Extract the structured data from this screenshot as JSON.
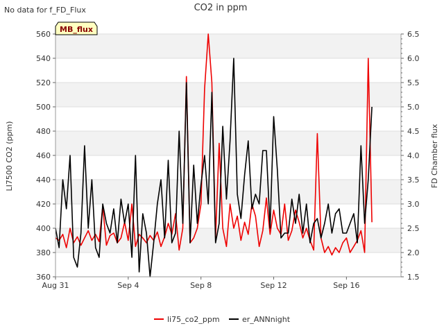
{
  "status_note": "No data for f_FD_Flux",
  "chart_data": {
    "type": "line",
    "title": "CO2 in ppm",
    "ylabel_left": "LI7500 CO2 (ppm)",
    "ylabel_right": "FD Chamber flux",
    "badge": "MB_flux",
    "x_range_days": [
      0,
      19
    ],
    "x_ticks": [
      {
        "day": 0,
        "label": "Aug 31"
      },
      {
        "day": 4,
        "label": "Sep 4"
      },
      {
        "day": 8,
        "label": "Sep 8"
      },
      {
        "day": 12,
        "label": "Sep 12"
      },
      {
        "day": 16,
        "label": "Sep 16"
      }
    ],
    "ylim_left": [
      360,
      560
    ],
    "y_ticks_left": [
      360,
      380,
      400,
      420,
      440,
      460,
      480,
      500,
      520,
      540,
      560
    ],
    "ylim_right": [
      1.5,
      6.5
    ],
    "y_ticks_right": [
      1.5,
      2.0,
      2.5,
      3.0,
      3.5,
      4.0,
      4.5,
      5.0,
      5.5,
      6.0,
      6.5
    ],
    "grid": true,
    "legend_position": "bottom-center",
    "series": [
      {
        "name": "li75_co2_ppm",
        "color": "#ee0000",
        "axis": "left",
        "x": [
          0.0,
          0.2,
          0.4,
          0.6,
          0.8,
          1.0,
          1.2,
          1.4,
          1.6,
          1.8,
          2.0,
          2.2,
          2.4,
          2.6,
          2.8,
          3.0,
          3.2,
          3.4,
          3.6,
          3.8,
          4.0,
          4.2,
          4.4,
          4.6,
          4.8,
          5.0,
          5.2,
          5.4,
          5.6,
          5.8,
          6.0,
          6.2,
          6.4,
          6.6,
          6.8,
          7.0,
          7.2,
          7.4,
          7.6,
          7.8,
          8.0,
          8.2,
          8.4,
          8.6,
          8.8,
          9.0,
          9.2,
          9.4,
          9.6,
          9.8,
          10.0,
          10.2,
          10.4,
          10.6,
          10.8,
          11.0,
          11.2,
          11.4,
          11.6,
          11.8,
          12.0,
          12.2,
          12.4,
          12.6,
          12.8,
          13.0,
          13.2,
          13.4,
          13.6,
          13.8,
          14.0,
          14.2,
          14.4,
          14.6,
          14.8,
          15.0,
          15.2,
          15.4,
          15.6,
          15.8,
          16.0,
          16.2,
          16.4,
          16.6,
          16.8,
          17.0,
          17.2,
          17.4
        ],
        "values": [
          392,
          390,
          395,
          384,
          400,
          388,
          393,
          386,
          392,
          398,
          390,
          395,
          389,
          418,
          386,
          394,
          396,
          388,
          392,
          405,
          390,
          420,
          385,
          395,
          392,
          388,
          394,
          390,
          397,
          385,
          393,
          404,
          395,
          412,
          382,
          400,
          525,
          388,
          392,
          400,
          420,
          515,
          560,
          520,
          392,
          470,
          400,
          385,
          420,
          400,
          410,
          390,
          405,
          395,
          420,
          410,
          385,
          398,
          425,
          395,
          415,
          400,
          395,
          420,
          390,
          398,
          415,
          405,
          392,
          400,
          390,
          382,
          478,
          392,
          380,
          385,
          378,
          384,
          380,
          388,
          392,
          380,
          385,
          390,
          398,
          380,
          540,
          405
        ],
        "values_right": []
      },
      {
        "name": "er_ANNnight",
        "color": "#000000",
        "axis": "right",
        "x": [
          0.0,
          0.2,
          0.4,
          0.6,
          0.8,
          1.0,
          1.2,
          1.4,
          1.6,
          1.8,
          2.0,
          2.2,
          2.4,
          2.6,
          2.8,
          3.0,
          3.2,
          3.4,
          3.6,
          3.8,
          4.0,
          4.2,
          4.4,
          4.6,
          4.8,
          5.0,
          5.2,
          5.4,
          5.6,
          5.8,
          6.0,
          6.2,
          6.4,
          6.6,
          6.8,
          7.0,
          7.2,
          7.4,
          7.6,
          7.8,
          8.0,
          8.2,
          8.4,
          8.6,
          8.8,
          9.0,
          9.2,
          9.4,
          9.6,
          9.8,
          10.0,
          10.2,
          10.4,
          10.6,
          10.8,
          11.0,
          11.2,
          11.4,
          11.6,
          11.8,
          12.0,
          12.2,
          12.4,
          12.6,
          12.8,
          13.0,
          13.2,
          13.4,
          13.6,
          13.8,
          14.0,
          14.2,
          14.4,
          14.6,
          14.8,
          15.0,
          15.2,
          15.4,
          15.6,
          15.8,
          16.0,
          16.2,
          16.4,
          16.6,
          16.8,
          17.0,
          17.2,
          17.4
        ],
        "values": [
          2.5,
          2.1,
          3.5,
          2.9,
          4.0,
          1.9,
          1.7,
          2.4,
          4.2,
          2.5,
          3.5,
          2.1,
          1.9,
          3.0,
          2.6,
          2.4,
          2.9,
          2.2,
          3.1,
          2.6,
          3.0,
          1.9,
          4.0,
          1.6,
          2.8,
          2.4,
          1.5,
          2.2,
          3.0,
          3.5,
          2.3,
          3.9,
          2.2,
          2.4,
          4.5,
          2.6,
          5.5,
          2.2,
          3.8,
          2.6,
          3.4,
          4.0,
          3.0,
          5.3,
          2.2,
          2.6,
          4.6,
          3.1,
          4.3,
          6.0,
          3.2,
          2.7,
          3.6,
          4.3,
          2.9,
          3.2,
          3.0,
          4.1,
          4.1,
          2.5,
          4.8,
          3.7,
          2.3,
          2.4,
          2.4,
          3.1,
          2.6,
          3.2,
          2.4,
          3.0,
          2.2,
          2.6,
          2.7,
          2.3,
          2.6,
          3.0,
          2.4,
          2.8,
          2.9,
          2.4,
          2.4,
          2.6,
          2.8,
          2.2,
          4.2,
          2.6,
          3.5,
          5.0
        ],
        "values_left": []
      }
    ]
  }
}
